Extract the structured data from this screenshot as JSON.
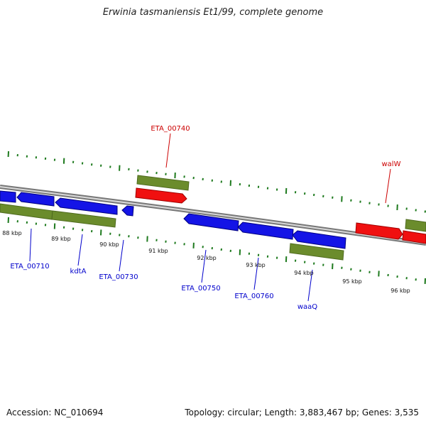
{
  "title": "Erwinia tasmaniensis Et1/99, complete genome",
  "footer": {
    "accession": "Accession: NC_010694",
    "summary": "Topology: circular; Length: 3,883,467 bp; Genes: 3,535"
  },
  "colors": {
    "forward_gene": "#f01010",
    "reverse_gene": "#1414e6",
    "cds": "#6b8c2c",
    "backbone": "#888888",
    "tick": "#1e7a1e",
    "label_forward": "#cc0000",
    "label_reverse": "#0000cc"
  },
  "scale": {
    "unit": "kbp",
    "ticks": [
      "88 kbp",
      "89 kbp",
      "90 kbp",
      "91 kbp",
      "92 kbp",
      "93 kbp",
      "94 kbp",
      "95 kbp",
      "96 kbp"
    ]
  },
  "gene_labels": [
    {
      "text": "ETA_00740",
      "strand": "forward"
    },
    {
      "text": "walW",
      "strand": "forward"
    },
    {
      "text": "ETA_00710",
      "strand": "reverse"
    },
    {
      "text": "kdtA",
      "strand": "reverse"
    },
    {
      "text": "ETA_00730",
      "strand": "reverse"
    },
    {
      "text": "ETA_00750",
      "strand": "reverse"
    },
    {
      "text": "ETA_00760",
      "strand": "reverse"
    },
    {
      "text": "waaQ",
      "strand": "reverse"
    }
  ]
}
